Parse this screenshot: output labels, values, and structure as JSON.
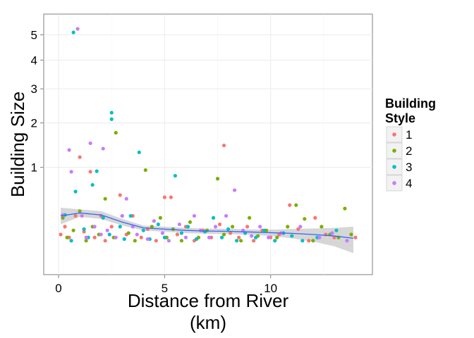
{
  "chart_data": {
    "type": "scatter",
    "title": "",
    "xlabel_line1": "Distance from River",
    "xlabel_line2": "(km)",
    "ylabel": "Building Size",
    "xlim": [
      -0.7,
      14.8
    ],
    "ylim": [
      0.0,
      5.9
    ],
    "y_scale": "sqrt",
    "x_ticks": [
      0,
      5,
      10
    ],
    "y_ticks": [
      1,
      2,
      3,
      4,
      5
    ],
    "grid": true,
    "legend": {
      "title_line1": "Building",
      "title_line2": "Style",
      "placement": "right",
      "entries": [
        "1",
        "2",
        "3",
        "4"
      ]
    },
    "colors": {
      "1": "#F8766D",
      "2": "#7CAE00",
      "3": "#00BFC4",
      "4": "#C77CFF",
      "smooth": "#3366FF",
      "band": "#999999"
    },
    "smooth_line": {
      "x": [
        0.1,
        1,
        2,
        3,
        4,
        5,
        6,
        7,
        8,
        9,
        10,
        11,
        12,
        13,
        13.9
      ],
      "y": [
        0.3,
        0.33,
        0.31,
        0.24,
        0.19,
        0.18,
        0.17,
        0.165,
        0.163,
        0.158,
        0.153,
        0.148,
        0.14,
        0.13,
        0.115
      ],
      "lower": [
        0.22,
        0.29,
        0.27,
        0.21,
        0.17,
        0.16,
        0.15,
        0.145,
        0.143,
        0.138,
        0.13,
        0.115,
        0.095,
        0.07,
        0.04
      ],
      "upper": [
        0.39,
        0.37,
        0.35,
        0.27,
        0.21,
        0.2,
        0.19,
        0.185,
        0.183,
        0.178,
        0.176,
        0.181,
        0.185,
        0.19,
        0.2
      ]
    },
    "series": [
      {
        "name": "1",
        "points": [
          [
            0.1,
            0.14
          ],
          [
            0.3,
            0.2
          ],
          [
            0.5,
            0.12
          ],
          [
            0.8,
            0.3
          ],
          [
            1.0,
            1.2
          ],
          [
            1.2,
            0.16
          ],
          [
            1.5,
            0.92
          ],
          [
            1.7,
            0.12
          ],
          [
            2.0,
            0.3
          ],
          [
            2.2,
            0.1
          ],
          [
            2.5,
            0.2
          ],
          [
            2.9,
            0.55
          ],
          [
            3.2,
            0.14
          ],
          [
            3.5,
            0.3
          ],
          [
            3.9,
            0.12
          ],
          [
            4.2,
            0.18
          ],
          [
            4.6,
            0.1
          ],
          [
            5.0,
            0.52
          ],
          [
            5.3,
            0.52
          ],
          [
            5.6,
            0.14
          ],
          [
            6.0,
            0.2
          ],
          [
            6.4,
            0.1
          ],
          [
            6.8,
            0.17
          ],
          [
            7.2,
            0.12
          ],
          [
            7.6,
            0.22
          ],
          [
            7.8,
            1.45
          ],
          [
            8.1,
            0.15
          ],
          [
            8.5,
            0.12
          ],
          [
            8.9,
            0.2
          ],
          [
            9.2,
            0.1
          ],
          [
            9.6,
            0.17
          ],
          [
            10.0,
            0.12
          ],
          [
            10.4,
            0.14
          ],
          [
            10.9,
            0.42
          ],
          [
            11.3,
            0.18
          ],
          [
            11.8,
            0.1
          ],
          [
            12.1,
            0.28
          ],
          [
            12.6,
            0.14
          ],
          [
            13.0,
            0.12
          ],
          [
            14.0,
            0.12
          ]
        ]
      },
      {
        "name": "2",
        "points": [
          [
            0.2,
            0.28
          ],
          [
            0.4,
            0.12
          ],
          [
            0.7,
            0.17
          ],
          [
            1.0,
            0.35
          ],
          [
            1.3,
            0.1
          ],
          [
            1.6,
            0.2
          ],
          [
            1.9,
            0.14
          ],
          [
            2.2,
            0.5
          ],
          [
            2.6,
            0.12
          ],
          [
            2.7,
            1.75
          ],
          [
            3.0,
            0.3
          ],
          [
            3.3,
            0.15
          ],
          [
            3.6,
            0.1
          ],
          [
            4.1,
            0.95
          ],
          [
            4.4,
            0.2
          ],
          [
            4.8,
            0.28
          ],
          [
            5.1,
            0.12
          ],
          [
            5.4,
            0.18
          ],
          [
            5.8,
            0.1
          ],
          [
            6.2,
            0.24
          ],
          [
            6.6,
            0.12
          ],
          [
            7.0,
            0.17
          ],
          [
            7.5,
            0.8
          ],
          [
            7.8,
            0.14
          ],
          [
            8.2,
            0.2
          ],
          [
            8.6,
            0.1
          ],
          [
            9.0,
            0.28
          ],
          [
            9.4,
            0.13
          ],
          [
            9.8,
            0.17
          ],
          [
            10.3,
            0.12
          ],
          [
            10.8,
            0.2
          ],
          [
            11.2,
            0.42
          ],
          [
            11.6,
            0.27
          ],
          [
            12.0,
            0.1
          ],
          [
            12.4,
            0.2
          ],
          [
            12.8,
            0.14
          ],
          [
            13.2,
            0.12
          ],
          [
            13.5,
            0.38
          ],
          [
            13.8,
            0.14
          ]
        ]
      },
      {
        "name": "3",
        "points": [
          [
            0.3,
            0.31
          ],
          [
            0.6,
            0.1
          ],
          [
            0.7,
            5.1
          ],
          [
            0.8,
            0.6
          ],
          [
            1.2,
            0.18
          ],
          [
            1.4,
            0.12
          ],
          [
            1.6,
            0.7
          ],
          [
            1.8,
            0.93
          ],
          [
            2.1,
            0.28
          ],
          [
            2.4,
            0.14
          ],
          [
            2.5,
            2.28
          ],
          [
            2.5,
            2.1
          ],
          [
            2.9,
            0.2
          ],
          [
            3.1,
            0.11
          ],
          [
            3.4,
            0.3
          ],
          [
            3.8,
            1.3
          ],
          [
            4.0,
            0.17
          ],
          [
            4.3,
            0.11
          ],
          [
            4.7,
            0.22
          ],
          [
            5.0,
            0.12
          ],
          [
            5.5,
            0.85
          ],
          [
            5.8,
            0.15
          ],
          [
            6.1,
            0.2
          ],
          [
            6.5,
            0.11
          ],
          [
            6.9,
            0.16
          ],
          [
            7.3,
            0.28
          ],
          [
            7.7,
            0.12
          ],
          [
            8.0,
            0.18
          ],
          [
            8.4,
            0.1
          ],
          [
            8.8,
            0.15
          ],
          [
            9.3,
            0.12
          ],
          [
            9.7,
            0.17
          ],
          [
            10.2,
            0.1
          ],
          [
            10.6,
            0.15
          ],
          [
            11.0,
            0.13
          ],
          [
            11.5,
            0.1
          ],
          [
            12.2,
            0.12
          ],
          [
            13.1,
            0.17
          ]
        ]
      },
      {
        "name": "4",
        "points": [
          [
            0.2,
            0.31
          ],
          [
            0.5,
            1.35
          ],
          [
            0.6,
            0.92
          ],
          [
            0.9,
            5.25
          ],
          [
            1.1,
            0.3
          ],
          [
            1.3,
            0.12
          ],
          [
            1.5,
            1.5
          ],
          [
            1.7,
            0.2
          ],
          [
            2.0,
            0.14
          ],
          [
            2.1,
            1.38
          ],
          [
            2.3,
            0.17
          ],
          [
            2.7,
            0.12
          ],
          [
            3.0,
            0.3
          ],
          [
            3.2,
            0.5
          ],
          [
            3.5,
            0.2
          ],
          [
            3.7,
            0.14
          ],
          [
            4.2,
            0.11
          ],
          [
            4.5,
            0.25
          ],
          [
            4.9,
            0.15
          ],
          [
            5.2,
            0.1
          ],
          [
            5.7,
            0.22
          ],
          [
            6.0,
            0.12
          ],
          [
            6.4,
            0.3
          ],
          [
            6.7,
            0.17
          ],
          [
            7.1,
            0.12
          ],
          [
            7.4,
            0.2
          ],
          [
            7.9,
            0.3
          ],
          [
            8.3,
            0.62
          ],
          [
            8.7,
            0.17
          ],
          [
            9.1,
            0.13
          ],
          [
            9.5,
            0.2
          ],
          [
            9.9,
            0.12
          ],
          [
            10.5,
            0.15
          ],
          [
            11.4,
            0.2
          ],
          [
            12.3,
            0.12
          ],
          [
            12.9,
            0.15
          ],
          [
            13.6,
            0.1
          ]
        ]
      }
    ]
  }
}
